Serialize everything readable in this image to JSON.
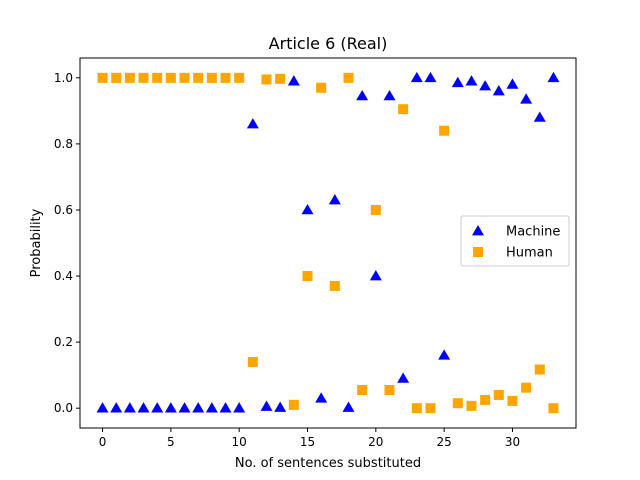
{
  "chart_data": {
    "type": "scatter",
    "title": "Article 6 (Real)",
    "xlabel": "No. of sentences substituted",
    "ylabel": "Probability",
    "xlim": [
      -1.65,
      34.65
    ],
    "ylim": [
      -0.06,
      1.06
    ],
    "xticks": [
      0,
      5,
      10,
      15,
      20,
      25,
      30
    ],
    "xtick_labels": [
      "0",
      "5",
      "10",
      "15",
      "20",
      "25",
      "30"
    ],
    "yticks": [
      0.0,
      0.2,
      0.4,
      0.6,
      0.8,
      1.0
    ],
    "ytick_labels": [
      "0.0",
      "0.2",
      "0.4",
      "0.6",
      "0.8",
      "1.0"
    ],
    "grid": false,
    "legend_position": "center-right",
    "x": [
      0,
      1,
      2,
      3,
      4,
      5,
      6,
      7,
      8,
      9,
      10,
      11,
      12,
      13,
      14,
      15,
      16,
      17,
      18,
      19,
      20,
      21,
      22,
      23,
      24,
      25,
      26,
      27,
      28,
      29,
      30,
      31,
      32,
      33
    ],
    "series": [
      {
        "name": "Machine",
        "marker": "triangle",
        "color": "#0000ff",
        "values": [
          0,
          0,
          0,
          0,
          0,
          0,
          0,
          0,
          0,
          0,
          0,
          0.86,
          0.005,
          0.002,
          0.99,
          0.6,
          0.03,
          0.63,
          0.002,
          0.945,
          0.4,
          0.945,
          0.09,
          1.0,
          1.0,
          0.16,
          0.985,
          0.99,
          0.975,
          0.96,
          0.98,
          0.935,
          0.88,
          1.0
        ]
      },
      {
        "name": "Human",
        "marker": "square",
        "color": "#ffa500",
        "values": [
          1.0,
          1.0,
          1.0,
          1.0,
          1.0,
          1.0,
          1.0,
          1.0,
          1.0,
          1.0,
          1.0,
          0.14,
          0.995,
          0.997,
          0.01,
          0.4,
          0.97,
          0.37,
          1.0,
          0.055,
          0.6,
          0.055,
          0.905,
          0.0,
          0.0,
          0.84,
          0.015,
          0.007,
          0.025,
          0.04,
          0.022,
          0.062,
          0.117,
          0.0
        ]
      }
    ]
  }
}
